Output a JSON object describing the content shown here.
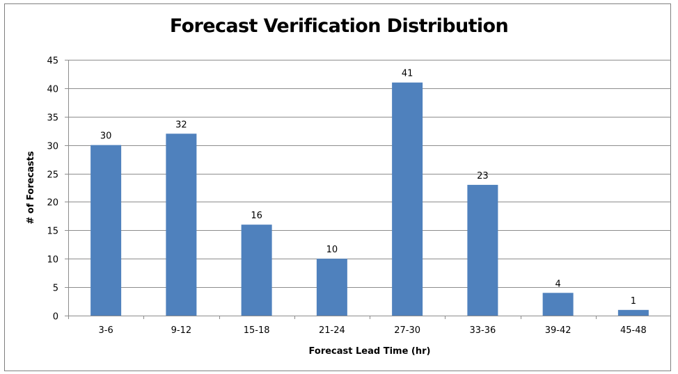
{
  "chart_data": {
    "type": "bar",
    "title": "Forecast Verification Distribution",
    "xlabel": "Forecast Lead Time (hr)",
    "ylabel": "# of Forecasts",
    "categories": [
      "3-6",
      "9-12",
      "15-18",
      "21-24",
      "27-30",
      "33-36",
      "39-42",
      "45-48"
    ],
    "values": [
      30,
      32,
      16,
      10,
      41,
      23,
      4,
      1
    ],
    "ylim": [
      0,
      45
    ],
    "yticks": [
      0,
      5,
      10,
      15,
      20,
      25,
      30,
      35,
      40,
      45
    ],
    "grid": true,
    "legend": "none",
    "bar_color": "#4f81bd",
    "grid_color": "#8c8c8c"
  }
}
